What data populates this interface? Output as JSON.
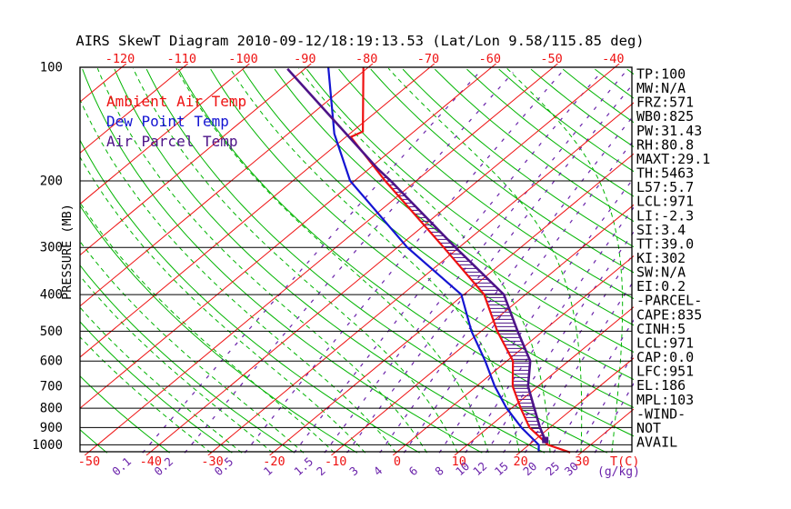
{
  "title": "AIRS SkewT Diagram 2010-09-12/18:19:13.53 (Lat/Lon 9.58/115.85 deg)",
  "colors": {
    "red": "#ee1111",
    "green": "#00b400",
    "blue": "#1414d2",
    "purple": "#6a22aa",
    "parcel_purple": "#4d1388",
    "black": "#000000",
    "background": "#ffffff"
  },
  "legend": [
    {
      "label": "Ambient Air Temp",
      "color": "red"
    },
    {
      "label": "Dew Point Temp",
      "color": "blue"
    },
    {
      "label": "Air Parcel Temp",
      "color": "parcel_purple"
    }
  ],
  "y_axis": {
    "title": "PRESSURE (MB)",
    "ticks": [
      100,
      200,
      300,
      400,
      500,
      600,
      700,
      800,
      900,
      1000
    ]
  },
  "top_axis": {
    "ticks": [
      -120,
      -110,
      -100,
      -90,
      -80,
      -70,
      -60,
      -50,
      -40
    ]
  },
  "bottom_axis": {
    "temp_ticks": [
      -50,
      -40,
      -30,
      -20,
      -10,
      0,
      10,
      20,
      30
    ],
    "temp_unit": "T(C)",
    "mixing_labels": [
      "0.1",
      "0.2",
      "0.5",
      "1",
      "1.5",
      "2",
      "3",
      "4",
      "6",
      "8",
      "10",
      "12",
      "15",
      "20",
      "25",
      "30"
    ],
    "mixing_unit": "(g/kg)"
  },
  "stats": [
    "TP:100",
    "MW:N/A",
    "FRZ:571",
    "WB0:825",
    "PW:31.43",
    "RH:80.8",
    "MAXT:29.1",
    "TH:5463",
    "L57:5.7",
    "LCL:971",
    "LI:-2.3",
    "SI:3.4",
    "TT:39.0",
    "KI:302",
    "SW:N/A",
    "EI:0.2",
    "-PARCEL-",
    "CAPE:835",
    "CINH:5",
    "LCL:971",
    "CAP:0.0",
    "LFC:951",
    "EL:186",
    "MPL:103",
    "-WIND-",
    "NOT",
    "AVAIL"
  ],
  "chart_data": {
    "type": "line",
    "title": "AIRS SkewT Diagram 2010-09-12/18:19:13.53 (Lat/Lon 9.58/115.85 deg)",
    "xlabel": "T(C)",
    "ylabel": "PRESSURE (MB)",
    "pressure_range_mb": [
      100,
      1050
    ],
    "pressure_scale": "log",
    "isotherms_degC": {
      "min": -130,
      "max": 40,
      "step": 10
    },
    "dry_adiabats_theta_degC": {
      "min": -60,
      "max": 180,
      "step": 10
    },
    "moist_adiabats_surface_degC": {
      "min": -30,
      "max": 40,
      "step": 5
    },
    "mixing_ratio_lines_g_kg": [
      0.1,
      0.2,
      0.5,
      1,
      1.5,
      2,
      3,
      4,
      6,
      8,
      10,
      12,
      15,
      20,
      25,
      30
    ],
    "series": [
      {
        "name": "Ambient Air Temp",
        "color": "red",
        "width": 2.2,
        "points_p_t": [
          [
            100,
            -80.8
          ],
          [
            148,
            -68.3
          ],
          [
            153,
            -69.2
          ],
          [
            200,
            -55.0
          ],
          [
            300,
            -32.5
          ],
          [
            400,
            -16.7
          ],
          [
            500,
            -7.4
          ],
          [
            600,
            1.0
          ],
          [
            700,
            5.9
          ],
          [
            800,
            11.5
          ],
          [
            900,
            16.7
          ],
          [
            1000,
            23.1
          ],
          [
            1048,
            28.2
          ]
        ]
      },
      {
        "name": "Dew Point Temp",
        "color": "blue",
        "width": 2.2,
        "points_p_t": [
          [
            100,
            -86.5
          ],
          [
            150,
            -72.5
          ],
          [
            200,
            -60.7
          ],
          [
            300,
            -38.4
          ],
          [
            400,
            -20.4
          ],
          [
            500,
            -11.6
          ],
          [
            600,
            -3.5
          ],
          [
            700,
            3.0
          ],
          [
            800,
            9.2
          ],
          [
            900,
            15.4
          ],
          [
            1000,
            21.6
          ],
          [
            1045,
            23.0
          ]
        ]
      },
      {
        "name": "Air Parcel Temp",
        "color": "parcel_purple",
        "width": 2.6,
        "points_p_t": [
          [
            101,
            -92.8
          ],
          [
            186,
            -58.5
          ],
          [
            200,
            -54.1
          ],
          [
            300,
            -30.6
          ],
          [
            400,
            -13.5
          ],
          [
            500,
            -4.1
          ],
          [
            600,
            3.8
          ],
          [
            700,
            8.4
          ],
          [
            800,
            13.7
          ],
          [
            900,
            18.4
          ],
          [
            971,
            21.7
          ]
        ]
      }
    ],
    "cape_hatch_between": {
      "series": [
        "Air Parcel Temp",
        "Ambient Air Temp"
      ],
      "from_mb": 971,
      "to_mb": 196
    },
    "lcl_marker": {
      "p_mb": 971,
      "t_degC": 21.7
    }
  }
}
